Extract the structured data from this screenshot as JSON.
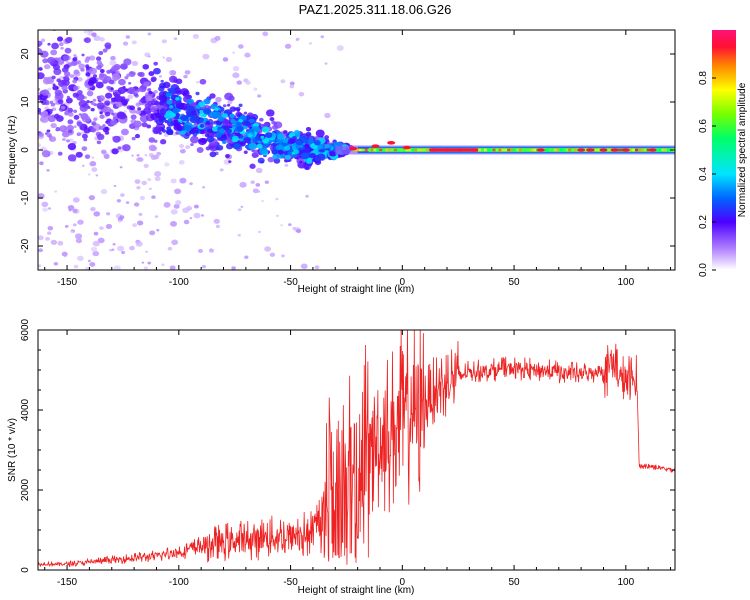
{
  "title": "PAZ1.2025.311.18.06.G26",
  "chart_data": [
    {
      "type": "heatmap",
      "xlabel": "Height of straight line (km)",
      "ylabel": "Frequency (Hz)",
      "xlim": [
        -163,
        122
      ],
      "ylim": [
        -25,
        25
      ],
      "xticks": [
        -150,
        -100,
        -50,
        0,
        50,
        100
      ],
      "yticks": [
        -20,
        -10,
        0,
        10,
        20
      ],
      "colorbar": {
        "label": "Normalized spectral amplitude",
        "ticks": [
          0.0,
          0.2,
          0.4,
          0.6,
          0.8
        ],
        "range": [
          0.0,
          1.0
        ]
      },
      "ridge": [
        {
          "x": -160,
          "f": 12,
          "spread": 12
        },
        {
          "x": -140,
          "f": 11,
          "spread": 10
        },
        {
          "x": -120,
          "f": 10,
          "spread": 8
        },
        {
          "x": -100,
          "f": 8,
          "spread": 6
        },
        {
          "x": -80,
          "f": 5,
          "spread": 5
        },
        {
          "x": -60,
          "f": 2,
          "spread": 4
        },
        {
          "x": -40,
          "f": 0,
          "spread": 3
        },
        {
          "x": -25,
          "f": 0,
          "spread": 1
        },
        {
          "x": 0,
          "f": 0.5,
          "spread": 0.8
        },
        {
          "x": 50,
          "f": 0,
          "spread": 0.6
        },
        {
          "x": 122,
          "f": 0,
          "spread": 0.6
        }
      ]
    },
    {
      "type": "line",
      "xlabel": "Height of straight line (km)",
      "ylabel": "SNR (10 * v/v)",
      "xlim": [
        -163,
        122
      ],
      "ylim": [
        0,
        6000
      ],
      "xticks": [
        -150,
        -100,
        -50,
        0,
        50,
        100
      ],
      "yticks": [
        0,
        2000,
        4000,
        6000
      ],
      "series": [
        {
          "name": "SNR",
          "color": "#ee2222",
          "x": [
            -163,
            -150,
            -140,
            -130,
            -120,
            -110,
            -100,
            -90,
            -80,
            -70,
            -60,
            -50,
            -40,
            -35,
            -32,
            -30,
            -25,
            -20,
            -15,
            -10,
            -5,
            0,
            5,
            10,
            15,
            20,
            25,
            30,
            40,
            50,
            60,
            70,
            80,
            90,
            95,
            97,
            100,
            105,
            106,
            110,
            115,
            122
          ],
          "y": [
            150,
            150,
            200,
            250,
            300,
            350,
            450,
            600,
            700,
            750,
            800,
            850,
            900,
            1500,
            2600,
            2700,
            2500,
            2800,
            3000,
            3300,
            3500,
            3800,
            4000,
            4200,
            4500,
            4700,
            4850,
            4950,
            5000,
            5050,
            5000,
            4950,
            4900,
            5000,
            5200,
            4800,
            4750,
            4700,
            2600,
            2600,
            2550,
            2500
          ]
        }
      ]
    }
  ]
}
